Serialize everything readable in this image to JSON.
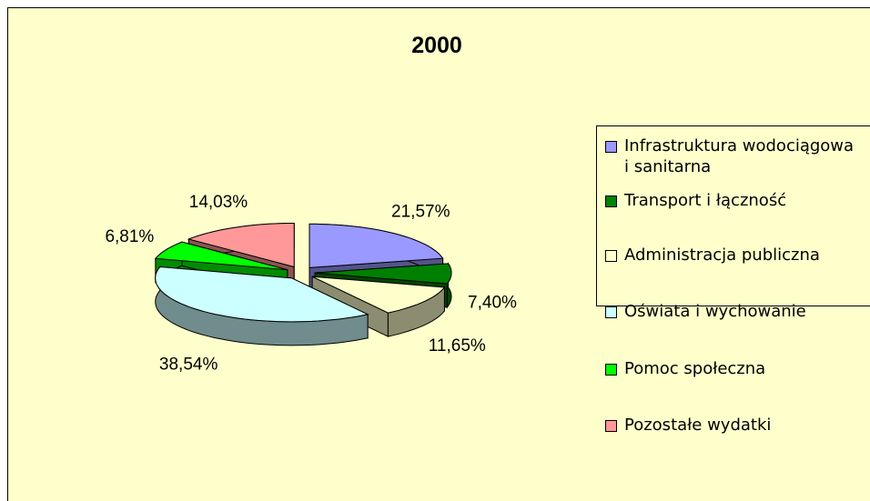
{
  "chart_data": {
    "type": "pie3d",
    "title": "2000",
    "categories": [
      "Infrastruktura wodociągowa i sanitarna",
      "Transport i łączność",
      "Administracja publiczna",
      "Oświata i wychowanie",
      "Pomoc społeczna",
      "Pozostałe wydatki"
    ],
    "values": [
      21.57,
      7.4,
      11.65,
      38.54,
      6.81,
      14.03
    ],
    "value_labels": [
      "21,57%",
      "7,40%",
      "11,65%",
      "38,54%",
      "6,81%",
      "14,03%"
    ],
    "colors": [
      "#9999ff",
      "#008000",
      "#ffffcc",
      "#ccffff",
      "#00ff00",
      "#ff9999"
    ],
    "legend": "right"
  }
}
